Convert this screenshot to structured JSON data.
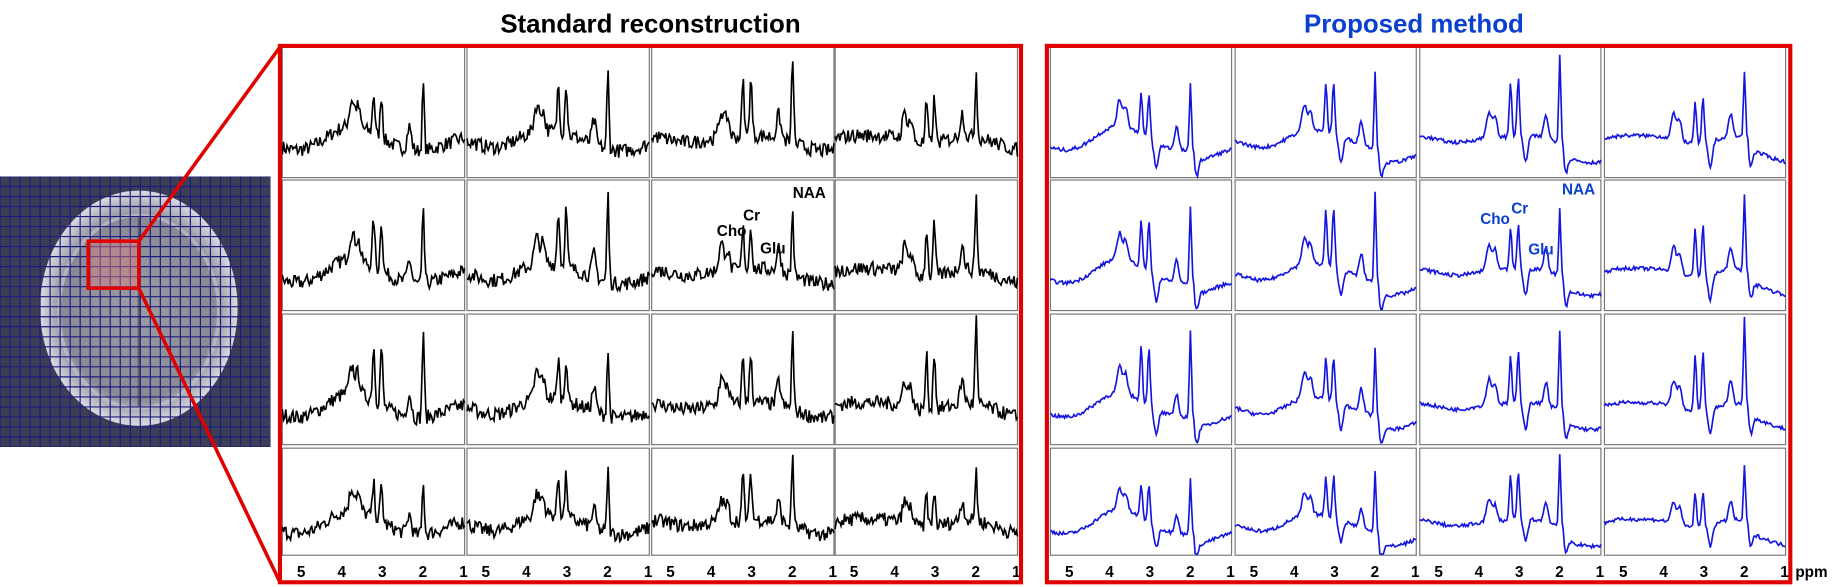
{
  "figure": {
    "left_title": "Standard reconstruction",
    "right_title": "Proposed method",
    "ppm_ticks": [
      "5",
      "4",
      "3",
      "2",
      "1"
    ],
    "unit": "ppm",
    "peaks": [
      "Cho",
      "Cr",
      "Glu",
      "NAA"
    ]
  }
}
